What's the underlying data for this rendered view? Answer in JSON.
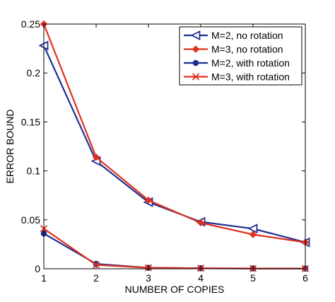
{
  "chart_data": {
    "type": "line",
    "x": [
      1,
      2,
      3,
      4,
      5,
      6
    ],
    "xlabel": "NUMBER OF COPIES",
    "ylabel": "ERROR BOUND",
    "xlim": [
      1,
      6
    ],
    "ylim": [
      0,
      0.25
    ],
    "xticks": [
      1,
      2,
      3,
      4,
      5,
      6
    ],
    "xtick_labels": [
      "1",
      "2",
      "3",
      "4",
      "5",
      "6"
    ],
    "yticks": [
      0,
      0.05,
      0.1,
      0.15,
      0.2,
      0.25
    ],
    "ytick_labels": [
      "0",
      "0.05",
      "0.1",
      "0.15",
      "0.2",
      "0.25"
    ],
    "grid": false,
    "legend_position": "top-right",
    "series": [
      {
        "name": "M=2, no rotation",
        "color": "#1f2f8f",
        "marker": "triangle-left-open",
        "values": [
          0.228,
          0.11,
          0.068,
          0.048,
          0.041,
          0.027
        ]
      },
      {
        "name": "M=3, no rotation",
        "color": "#e0301e",
        "marker": "diamond-filled",
        "values": [
          0.25,
          0.114,
          0.07,
          0.047,
          0.035,
          0.027
        ]
      },
      {
        "name": "M=2, with rotation",
        "color": "#1f2f8f",
        "marker": "circle-filled",
        "values": [
          0.036,
          0.005,
          0.001,
          0.0005,
          0.0003,
          0.0002
        ]
      },
      {
        "name": "M=3, with rotation",
        "color": "#e0301e",
        "marker": "x",
        "values": [
          0.041,
          0.004,
          0.001,
          0.0005,
          0.0003,
          0.0002
        ]
      }
    ]
  }
}
